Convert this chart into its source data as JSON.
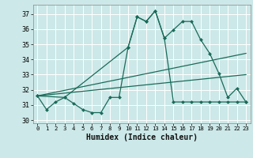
{
  "xlabel": "Humidex (Indice chaleur)",
  "bg_color": "#cce8e8",
  "grid_color": "#ffffff",
  "line_color": "#1a6b5a",
  "xlim": [
    -0.5,
    23.5
  ],
  "ylim": [
    29.8,
    37.6
  ],
  "xticks": [
    0,
    1,
    2,
    3,
    4,
    5,
    6,
    7,
    8,
    9,
    10,
    11,
    12,
    13,
    14,
    15,
    16,
    17,
    18,
    19,
    20,
    21,
    22,
    23
  ],
  "yticks": [
    30,
    31,
    32,
    33,
    34,
    35,
    36,
    37
  ],
  "series": [
    {
      "x": [
        0,
        1,
        2,
        3,
        4,
        5,
        6,
        7,
        8,
        9,
        10,
        11,
        12,
        13,
        14,
        15,
        16,
        17,
        18,
        19,
        20,
        21,
        22,
        23
      ],
      "y": [
        31.6,
        30.7,
        31.2,
        31.5,
        31.1,
        30.7,
        30.5,
        30.5,
        31.5,
        31.5,
        34.8,
        36.8,
        36.5,
        37.2,
        35.4,
        31.2,
        31.2,
        31.2,
        31.2,
        31.2,
        31.2,
        31.2,
        31.2,
        31.2
      ],
      "marker": "D",
      "markersize": 2.0,
      "lw": 0.9
    },
    {
      "x": [
        0,
        3,
        10,
        11,
        12,
        13,
        14,
        15,
        16,
        17,
        18,
        19,
        20,
        21,
        22,
        23
      ],
      "y": [
        31.6,
        31.5,
        34.8,
        36.8,
        36.5,
        37.2,
        35.4,
        35.95,
        36.5,
        36.5,
        35.3,
        34.4,
        33.1,
        31.5,
        32.1,
        31.2
      ],
      "marker": "D",
      "markersize": 2.0,
      "lw": 0.9
    },
    {
      "x": [
        0,
        23
      ],
      "y": [
        31.6,
        34.4
      ],
      "marker": null,
      "markersize": 0,
      "lw": 0.9
    },
    {
      "x": [
        0,
        23
      ],
      "y": [
        31.6,
        33.0
      ],
      "marker": null,
      "markersize": 0,
      "lw": 0.9
    }
  ]
}
